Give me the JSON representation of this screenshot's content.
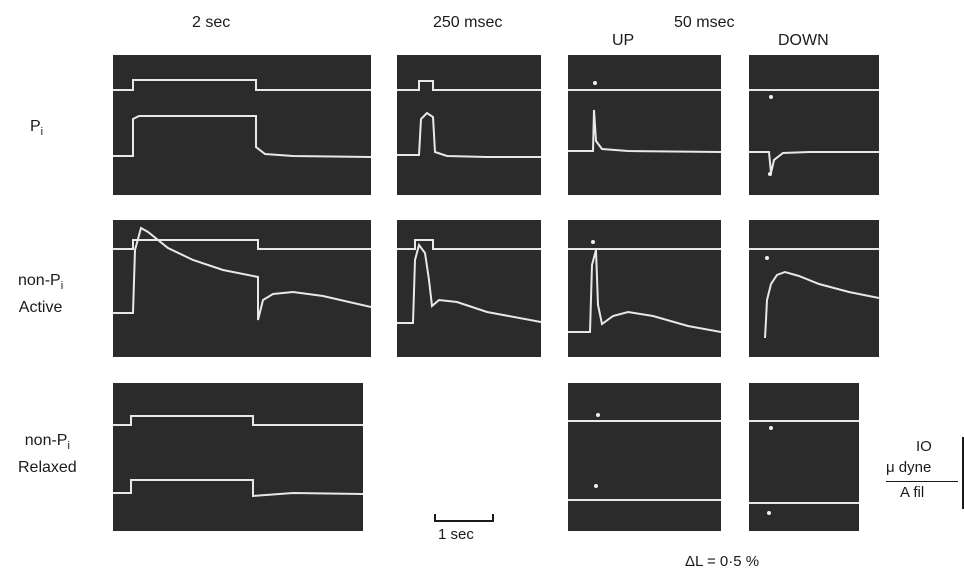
{
  "columns": {
    "c1": "2 sec",
    "c2": "250 msec",
    "c3_top": "50 msec",
    "c3_up": "UP",
    "c3_down": "DOWN"
  },
  "rows": {
    "r1": {
      "main": "P",
      "sub": "i"
    },
    "r2": {
      "line1": "non-P",
      "sub": "i",
      "line2": "Active"
    },
    "r3": {
      "line1": "non-P",
      "sub": "i",
      "line2": "Relaxed"
    }
  },
  "timebar_label": "1 sec",
  "force_scale": {
    "value": "IO",
    "unit_top": "μ dyne",
    "unit_bottom": "A fil"
  },
  "delta_label": "ΔL = 0·5 %"
}
